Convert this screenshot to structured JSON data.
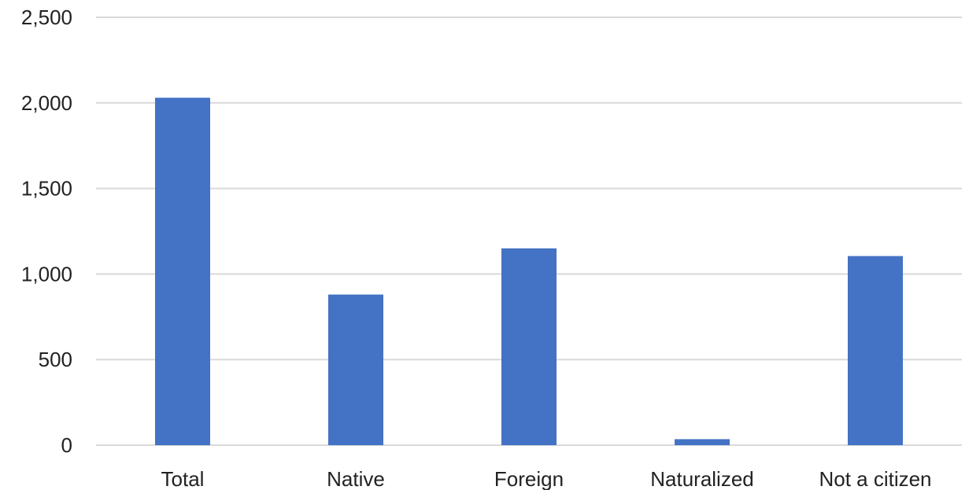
{
  "chart_data": {
    "type": "bar",
    "title": "",
    "xlabel": "",
    "ylabel": "",
    "categories": [
      "Total",
      "Native",
      "Foreign",
      "Naturalized",
      "Not a citizen"
    ],
    "values": [
      2030,
      880,
      1150,
      35,
      1105
    ],
    "ylim": [
      0,
      2500
    ],
    "y_ticks": [
      0,
      500,
      1000,
      1500,
      2000,
      2500
    ],
    "y_tick_labels": [
      "0",
      "500",
      "1,000",
      "1,500",
      "2,000",
      "2,500"
    ],
    "grid": true,
    "legend": "none",
    "bar_color": "#4472c4"
  }
}
